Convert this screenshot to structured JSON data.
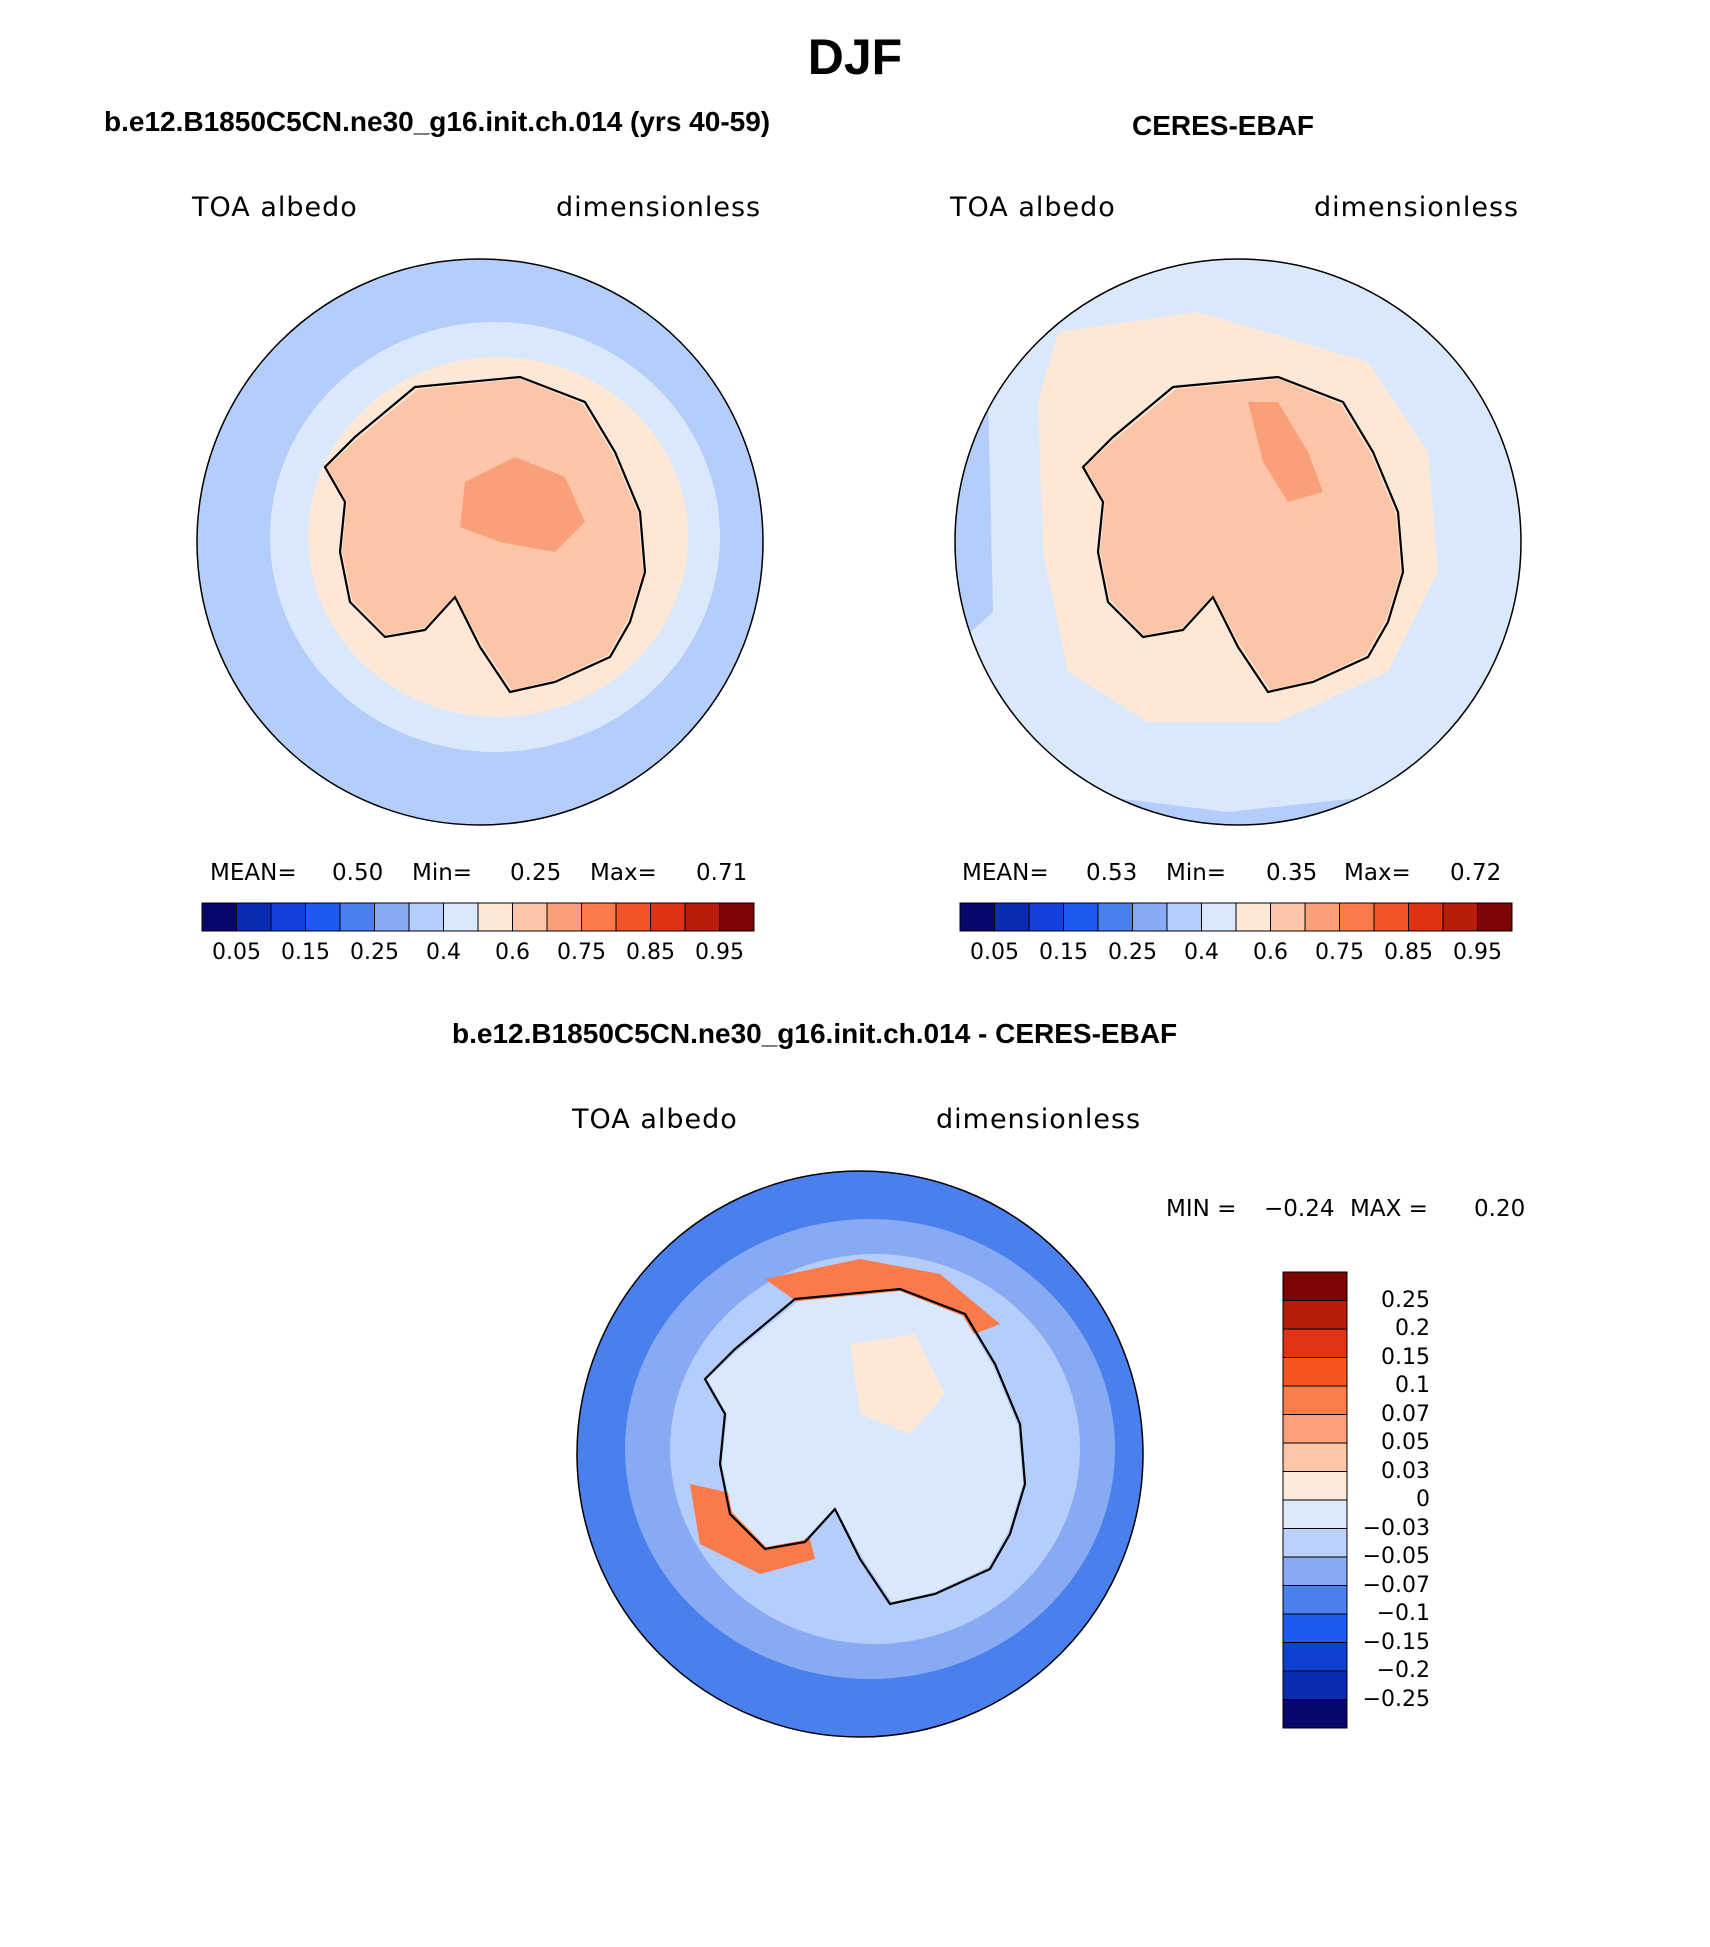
{
  "title": "DJF",
  "panels": [
    {
      "id": "model",
      "title": "b.e12.B1850C5CN.ne30_g16.init.ch.014 (yrs 40-59)",
      "variable": "TOA albedo",
      "units": "dimensionless",
      "stats": {
        "mean_label": "MEAN=",
        "mean": "0.50",
        "min_label": "Min=",
        "min": "0.25",
        "max_label": "Max=",
        "max": "0.71"
      }
    },
    {
      "id": "obs",
      "title": "CERES-EBAF",
      "variable": "TOA albedo",
      "units": "dimensionless",
      "stats": {
        "mean_label": "MEAN=",
        "mean": "0.53",
        "min_label": "Min=",
        "min": "0.35",
        "max_label": "Max=",
        "max": "0.72"
      }
    },
    {
      "id": "diff",
      "title": "b.e12.B1850C5CN.ne30_g16.init.ch.014 - CERES-EBAF",
      "variable": "TOA albedo",
      "units": "dimensionless",
      "stats": {
        "min_label": "MIN =",
        "min": "−0.24",
        "max_label": "MAX =",
        "max": "0.20"
      }
    }
  ],
  "colorbar_horizontal": {
    "colors": [
      "#08076e",
      "#0b2bb0",
      "#1240d8",
      "#1e59f0",
      "#4a80ee",
      "#87aaf2",
      "#b4cdfa",
      "#d9e9fb",
      "#fde8d8",
      "#fcc5a8",
      "#f9a07a",
      "#f97a4a",
      "#f2552a",
      "#df3314",
      "#b61e0a",
      "#7d0505"
    ],
    "ticks": [
      "0.05",
      "0.15",
      "0.25",
      "0.4",
      "0.6",
      "0.75",
      "0.85",
      "0.95"
    ]
  },
  "colorbar_vertical": {
    "colors": [
      "#7d0505",
      "#b61e0a",
      "#e03414",
      "#f5561f",
      "#f97e4c",
      "#fba07c",
      "#fdc6a8",
      "#fde9da",
      "#dbeafb",
      "#b9d1fb",
      "#87aaf2",
      "#4a80ee",
      "#1e59f0",
      "#1040d0",
      "#0b2bb0",
      "#08076e"
    ],
    "ticks": [
      "0.25",
      "0.2",
      "0.15",
      "0.1",
      "0.07",
      "0.05",
      "0.03",
      "0",
      "−0.03",
      "−0.05",
      "−0.07",
      "−0.1",
      "−0.15",
      "−0.2",
      "−0.25"
    ]
  },
  "field_colors": {
    "ocean_outer": "#b4cdfa",
    "ocean_inner": "#d9e9fb",
    "sea_ice": "#fde8d8",
    "continent": "#fcc5a8",
    "continent_high": "#f9a07a",
    "diff_outer": "#4a80ee",
    "diff_mid": "#87aaf2",
    "diff_inner": "#b4cdfa",
    "diff_positive": "#f97a4a"
  }
}
